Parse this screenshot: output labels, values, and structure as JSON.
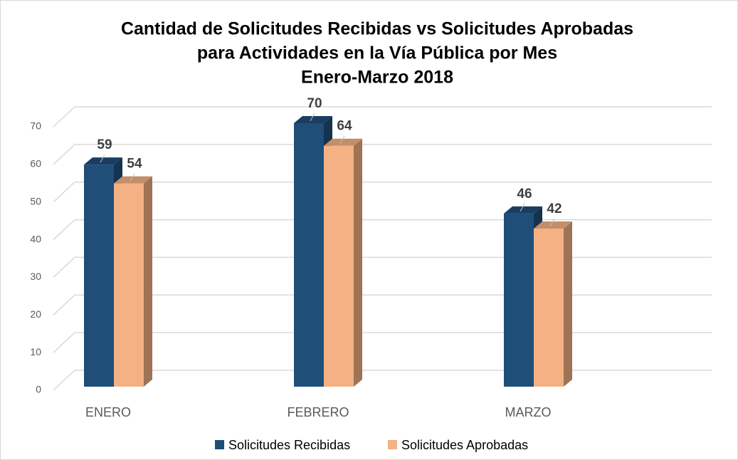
{
  "chart_data": {
    "type": "bar",
    "title": [
      "Cantidad de Solicitudes Recibidas vs Solicitudes Aprobadas",
      "para Actividades en la Vía Pública por Mes",
      "Enero-Marzo 2018"
    ],
    "categories": [
      "ENERO",
      "FEBRERO",
      "MARZO"
    ],
    "series": [
      {
        "name": "Solicitudes Recibidas",
        "color": "#1f4e79",
        "values": [
          59,
          70,
          46
        ]
      },
      {
        "name": "Solicitudes Aprobadas",
        "color": "#f4b183",
        "values": [
          54,
          64,
          42
        ]
      }
    ],
    "ylim": [
      0,
      70
    ],
    "yticks": [
      0,
      10,
      20,
      30,
      40,
      50,
      60,
      70
    ],
    "grid": true,
    "legend": "bottom"
  }
}
